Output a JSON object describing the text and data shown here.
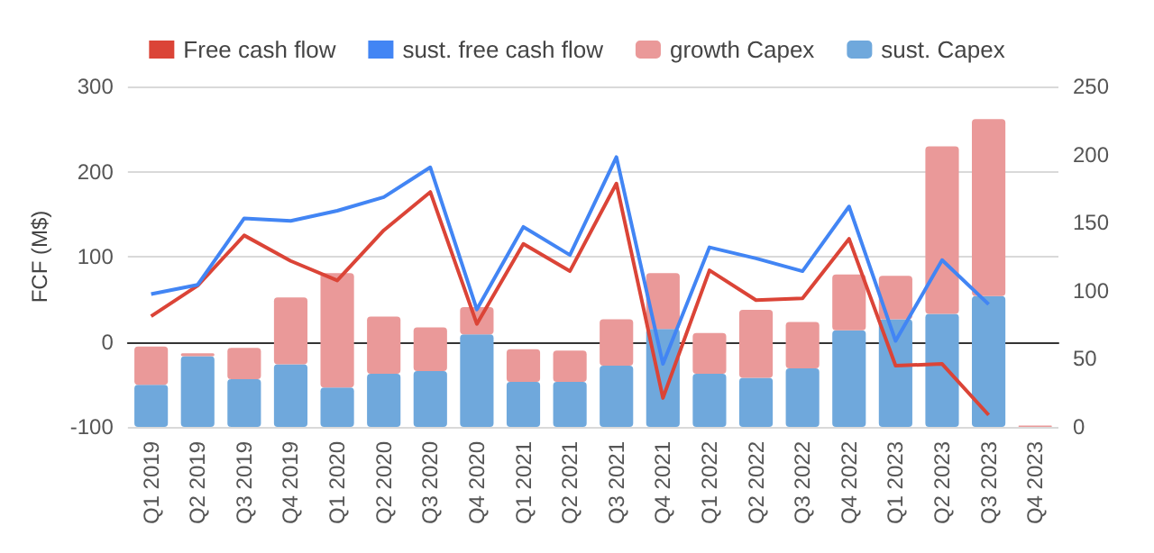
{
  "chart_data": {
    "type": "bar",
    "ylabel": "FCF (M$)",
    "stacked": true,
    "legend": "top",
    "grid": "y",
    "categories": [
      "Q1 2019",
      "Q2 2019",
      "Q3 2019",
      "Q4 2019",
      "Q1 2020",
      "Q2 2020",
      "Q3 2020",
      "Q4 2020",
      "Q1 2021",
      "Q2 2021",
      "Q3 2021",
      "Q4 2021",
      "Q1 2022",
      "Q2 2022",
      "Q3 2022",
      "Q4 2022",
      "Q1 2023",
      "Q2 2023",
      "Q3 2023",
      "Q4 2023"
    ],
    "series": [
      {
        "name": "Free cash flow",
        "type": "line",
        "color": "#db4437",
        "values": [
          30,
          66,
          125,
          95,
          72,
          131,
          176,
          21,
          115,
          83,
          186,
          -66,
          84,
          49,
          51,
          121,
          -28,
          -26,
          -86,
          null
        ]
      },
      {
        "name": "sust. free cash flow",
        "type": "line",
        "color": "#4285f4",
        "values": [
          56,
          67,
          145,
          142,
          154,
          170,
          205,
          38,
          135,
          102,
          217,
          -26,
          111,
          98,
          83,
          159,
          1,
          96,
          44,
          null
        ]
      },
      {
        "name": "sust. Capex",
        "axis": "y2",
        "color": "#6fa8dc",
        "values": [
          31,
          52,
          35,
          46,
          29,
          39,
          41,
          68,
          33,
          33,
          45,
          72,
          39,
          36,
          43,
          71,
          79,
          83,
          96,
          0
        ]
      },
      {
        "name": "growth Capex",
        "axis": "y2",
        "color": "#ea9999",
        "values": [
          28,
          2,
          23,
          49,
          84,
          42,
          32,
          20,
          24,
          23,
          34,
          41,
          30,
          50,
          34,
          41,
          32,
          123,
          130,
          1
        ]
      }
    ],
    "ylim": [
      -100,
      300
    ],
    "yticks": [
      -100,
      0,
      100,
      200,
      300
    ],
    "y2lim": [
      0,
      250
    ],
    "y2ticks": [
      0,
      50,
      100,
      150,
      200,
      250
    ]
  }
}
